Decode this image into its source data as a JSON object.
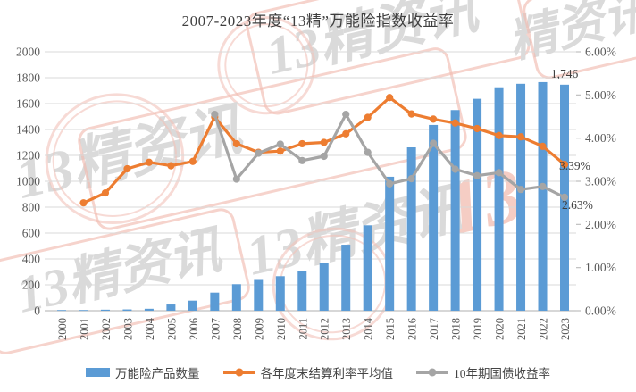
{
  "title": "2007-2023年度“13精”万能险指数收益率",
  "watermark": {
    "brand": "13精资讯",
    "brand_short": "精资讯",
    "brand_numeral": "13"
  },
  "legend": [
    {
      "label": "万能险产品数量",
      "type": "bar",
      "color": "#5B9BD5"
    },
    {
      "label": "各年度末结算利率平均值",
      "type": "line",
      "color": "#ED7D31"
    },
    {
      "label": "10年期国债收益率",
      "type": "line",
      "color": "#A5A5A5"
    }
  ],
  "chart_data": {
    "type": "bar",
    "subtype": "bar-line combo, dual axis",
    "title": "2007-2023年度“13精”万能险指数收益率",
    "categories": [
      "2000",
      "2001",
      "2002",
      "2003",
      "2004",
      "2005",
      "2006",
      "2007",
      "2008",
      "2009",
      "2010",
      "2011",
      "2012",
      "2013",
      "2014",
      "2015",
      "2016",
      "2017",
      "2018",
      "2019",
      "2020",
      "2021",
      "2022",
      "2023"
    ],
    "series": [
      {
        "name": "万能险产品数量",
        "type": "bar",
        "axis": "left",
        "color": "#5B9BD5",
        "values": [
          5,
          5,
          8,
          10,
          15,
          48,
          78,
          140,
          205,
          238,
          267,
          306,
          372,
          510,
          660,
          1035,
          1262,
          1435,
          1550,
          1637,
          1726,
          1753,
          1766,
          1746
        ]
      },
      {
        "name": "各年度末结算利率平均值",
        "type": "line",
        "axis": "right",
        "color": "#ED7D31",
        "values": [
          null,
          2.5,
          2.73,
          3.29,
          3.44,
          3.36,
          3.46,
          4.49,
          3.87,
          3.67,
          3.7,
          3.87,
          3.9,
          4.1,
          4.48,
          4.94,
          4.56,
          4.44,
          4.35,
          4.22,
          4.06,
          4.03,
          3.81,
          3.39
        ]
      },
      {
        "name": "10年期国债收益率",
        "type": "line",
        "axis": "right",
        "color": "#A5A5A5",
        "values": [
          null,
          null,
          null,
          null,
          null,
          null,
          null,
          4.55,
          3.05,
          3.65,
          3.86,
          3.48,
          3.58,
          4.55,
          3.67,
          2.94,
          3.06,
          3.88,
          3.28,
          3.13,
          3.2,
          2.81,
          2.88,
          2.63
        ]
      }
    ],
    "left_axis": {
      "min": 0,
      "max": 2000,
      "step": 200,
      "tick_labels": [
        "0",
        "200",
        "400",
        "600",
        "800",
        "1000",
        "1200",
        "1400",
        "1600",
        "1800",
        "2000"
      ]
    },
    "right_axis": {
      "min": 0,
      "max": 6,
      "step": 1,
      "tick_labels": [
        "0.00%",
        "1.00%",
        "2.00%",
        "3.00%",
        "4.00%",
        "5.00%",
        "6.00%"
      ]
    },
    "annotations": [
      {
        "text": "1,746",
        "series": "万能险产品数量",
        "category": "2023",
        "value": 1746
      },
      {
        "text": "3.39%",
        "series": "各年度末结算利率平均值",
        "category": "2023",
        "value": 3.39
      },
      {
        "text": "2.63%",
        "series": "10年期国债收益率",
        "category": "2023",
        "value": 2.63
      }
    ],
    "grid": true,
    "legend_position": "bottom",
    "colors": {
      "grid": "#d9d9d9",
      "axis_line": "#bfbfbf",
      "axis_text": "#595959",
      "annotation_text": "#3f3f3f"
    }
  }
}
